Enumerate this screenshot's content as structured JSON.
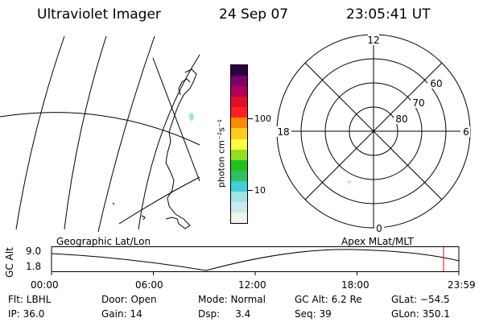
{
  "header": {
    "instrument": "Ultraviolet Imager",
    "date": "24 Sep 07",
    "time": "23:05:41 UT"
  },
  "colorbar": {
    "unit_label": "photon cm⁻²s⁻¹",
    "ticks": [
      {
        "label": "100",
        "value": 100
      },
      {
        "label": "10",
        "value": 10
      }
    ],
    "colors": [
      "#f2f2f2",
      "#cfe7ef",
      "#9fe3e8",
      "#40d0d8",
      "#30c060",
      "#20c020",
      "#90e020",
      "#ffff40",
      "#ffcc20",
      "#ff8c00",
      "#ff2020",
      "#e0102a",
      "#b00055",
      "#7a006a",
      "#2a0040"
    ]
  },
  "polar_plot": {
    "mlt_labels": {
      "top": "12",
      "left": "18",
      "right": "6",
      "bottom": "0"
    },
    "mlat_labels": [
      "60",
      "70",
      "80"
    ]
  },
  "timeline": {
    "ylabel": "GC Alt",
    "ymax_label": "9.0",
    "ymin_label": "1.8",
    "left_title": "Geographic Lat/Lon",
    "right_title": "Apex MLat/MLT",
    "xticks": [
      "00:00",
      "06:00",
      "12:00",
      "18:00",
      "23:59"
    ],
    "current_time_hours": 23.1,
    "marker_color": "#ff0000"
  },
  "status": {
    "filter": "Flt: LBHL",
    "ip": "IP: 36.0",
    "door": "Door: Open",
    "gain": "Gain: 14",
    "mode": "Mode: Normal",
    "dsp": "Dsp:     3.4",
    "gc_alt": "GC Alt: 6.2 Re",
    "seq": "Seq: 39",
    "glat": "GLat: −54.5",
    "glon": "GLon: 350.1"
  }
}
